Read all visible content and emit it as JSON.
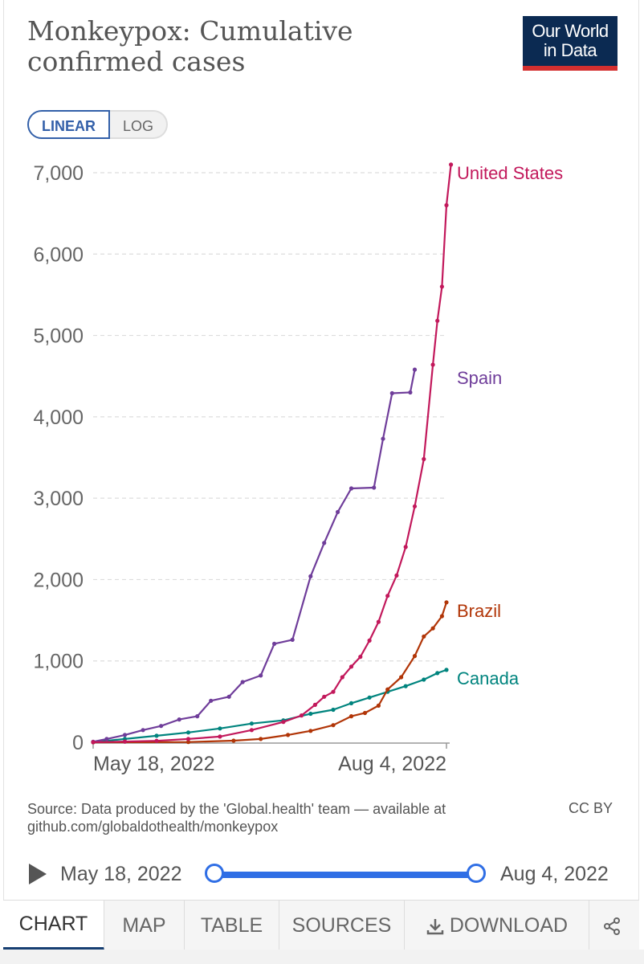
{
  "header": {
    "title_line1": "Monkeypox: Cumulative",
    "title_line2": "confirmed cases",
    "logo_line1": "Our World",
    "logo_line2": "in Data"
  },
  "scale_toggle": {
    "linear": "LINEAR",
    "log": "LOG",
    "selected": "LINEAR"
  },
  "chart_data": {
    "type": "line",
    "title": "Monkeypox: Cumulative confirmed cases",
    "xlabel": "",
    "ylabel": "",
    "x_ticks": [
      "May 18, 2022",
      "Aug 4, 2022"
    ],
    "y_ticks": [
      "0",
      "1,000",
      "2,000",
      "3,000",
      "4,000",
      "5,000",
      "6,000",
      "7,000"
    ],
    "ylim": [
      0,
      7000
    ],
    "xlim": [
      "2022-05-18",
      "2022-08-04"
    ],
    "grid": true,
    "legend": "inline-right",
    "series": [
      {
        "name": "United States",
        "color": "#c2185b",
        "points": [
          [
            "2022-05-18",
            1
          ],
          [
            "2022-05-25",
            9
          ],
          [
            "2022-06-01",
            18
          ],
          [
            "2022-06-08",
            40
          ],
          [
            "2022-06-15",
            70
          ],
          [
            "2022-06-22",
            150
          ],
          [
            "2022-06-29",
            250
          ],
          [
            "2022-07-03",
            330
          ],
          [
            "2022-07-06",
            460
          ],
          [
            "2022-07-08",
            560
          ],
          [
            "2022-07-10",
            620
          ],
          [
            "2022-07-12",
            800
          ],
          [
            "2022-07-14",
            930
          ],
          [
            "2022-07-16",
            1050
          ],
          [
            "2022-07-18",
            1250
          ],
          [
            "2022-07-20",
            1480
          ],
          [
            "2022-07-22",
            1800
          ],
          [
            "2022-07-24",
            2050
          ],
          [
            "2022-07-26",
            2400
          ],
          [
            "2022-07-28",
            2900
          ],
          [
            "2022-07-30",
            3480
          ],
          [
            "2022-08-01",
            4640
          ],
          [
            "2022-08-02",
            5180
          ],
          [
            "2022-08-03",
            5600
          ],
          [
            "2022-08-04",
            6600
          ],
          [
            "2022-08-05",
            7100
          ]
        ]
      },
      {
        "name": "Spain",
        "color": "#6f3d9a",
        "points": [
          [
            "2022-05-18",
            7
          ],
          [
            "2022-05-21",
            40
          ],
          [
            "2022-05-25",
            90
          ],
          [
            "2022-05-29",
            150
          ],
          [
            "2022-06-02",
            200
          ],
          [
            "2022-06-06",
            280
          ],
          [
            "2022-06-10",
            320
          ],
          [
            "2022-06-13",
            510
          ],
          [
            "2022-06-17",
            560
          ],
          [
            "2022-06-20",
            740
          ],
          [
            "2022-06-24",
            820
          ],
          [
            "2022-06-27",
            1210
          ],
          [
            "2022-07-01",
            1260
          ],
          [
            "2022-07-05",
            2040
          ],
          [
            "2022-07-08",
            2450
          ],
          [
            "2022-07-11",
            2830
          ],
          [
            "2022-07-14",
            3120
          ],
          [
            "2022-07-19",
            3130
          ],
          [
            "2022-07-21",
            3730
          ],
          [
            "2022-07-23",
            4290
          ],
          [
            "2022-07-27",
            4300
          ],
          [
            "2022-07-28",
            4580
          ]
        ]
      },
      {
        "name": "Brazil",
        "color": "#b13507",
        "points": [
          [
            "2022-05-18",
            0
          ],
          [
            "2022-06-08",
            3
          ],
          [
            "2022-06-18",
            20
          ],
          [
            "2022-06-24",
            40
          ],
          [
            "2022-06-30",
            90
          ],
          [
            "2022-07-05",
            140
          ],
          [
            "2022-07-10",
            210
          ],
          [
            "2022-07-14",
            320
          ],
          [
            "2022-07-17",
            360
          ],
          [
            "2022-07-20",
            450
          ],
          [
            "2022-07-22",
            650
          ],
          [
            "2022-07-25",
            800
          ],
          [
            "2022-07-28",
            1060
          ],
          [
            "2022-07-30",
            1300
          ],
          [
            "2022-08-01",
            1400
          ],
          [
            "2022-08-03",
            1550
          ],
          [
            "2022-08-04",
            1720
          ]
        ]
      },
      {
        "name": "Canada",
        "color": "#00847e",
        "points": [
          [
            "2022-05-18",
            2
          ],
          [
            "2022-05-25",
            40
          ],
          [
            "2022-06-01",
            80
          ],
          [
            "2022-06-08",
            120
          ],
          [
            "2022-06-15",
            170
          ],
          [
            "2022-06-22",
            230
          ],
          [
            "2022-06-29",
            270
          ],
          [
            "2022-07-05",
            350
          ],
          [
            "2022-07-10",
            400
          ],
          [
            "2022-07-14",
            480
          ],
          [
            "2022-07-18",
            550
          ],
          [
            "2022-07-22",
            620
          ],
          [
            "2022-07-26",
            690
          ],
          [
            "2022-07-30",
            770
          ],
          [
            "2022-08-02",
            850
          ],
          [
            "2022-08-04",
            890
          ]
        ]
      }
    ]
  },
  "source": {
    "line1": "Source: Data produced by the 'Global.health' team — available at",
    "line2": "github.com/globaldothealth/monkeypox",
    "license": "CC BY"
  },
  "timeline": {
    "start": "May 18, 2022",
    "end": "Aug 4, 2022"
  },
  "tabs": [
    "CHART",
    "MAP",
    "TABLE",
    "SOURCES",
    "DOWNLOAD"
  ]
}
